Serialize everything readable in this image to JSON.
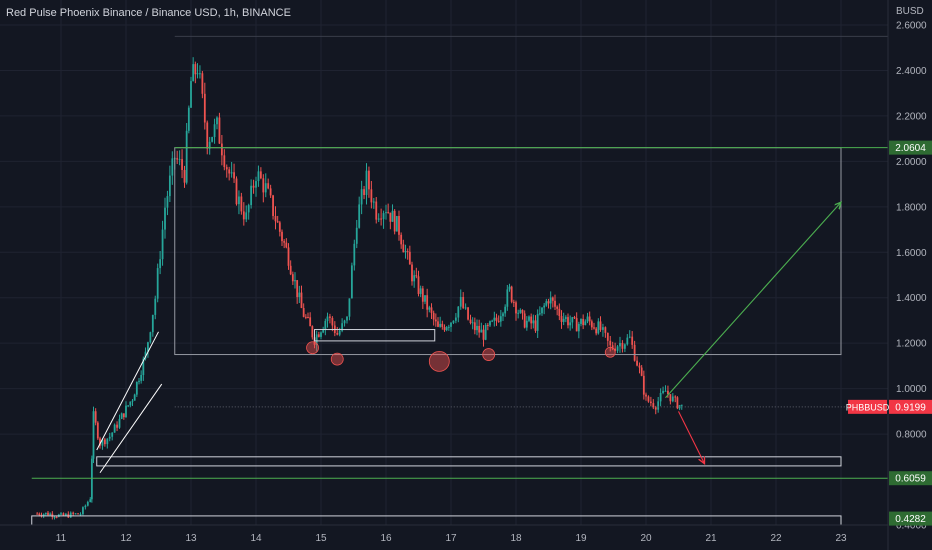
{
  "header": {
    "title": "Red Pulse Phoenix Binance / Binance USD, 1h, BINANCE"
  },
  "chart_data": {
    "type": "candlestick",
    "title": "Red Pulse Phoenix Binance / Binance USD, 1h, BINANCE",
    "ylabel": "BUSD",
    "ylim": [
      0.38,
      2.62
    ],
    "xlim": [
      10.55,
      23.8
    ],
    "y_ticks": [
      "2.6000",
      "2.4000",
      "2.2000",
      "2.0000",
      "1.8000",
      "1.6000",
      "1.4000",
      "1.2000",
      "1.0000",
      "0.8000",
      "0.4000"
    ],
    "x_ticks": [
      "11",
      "12",
      "13",
      "14",
      "15",
      "16",
      "17",
      "18",
      "19",
      "20",
      "21",
      "22",
      "23"
    ],
    "grid": true,
    "series": [
      {
        "name": "PHBBUSD",
        "path_close": [
          [
            10.6,
            0.45
          ],
          [
            10.8,
            0.45
          ],
          [
            11.0,
            0.44
          ],
          [
            11.3,
            0.45
          ],
          [
            11.45,
            0.52
          ],
          [
            11.5,
            0.88
          ],
          [
            11.6,
            0.76
          ],
          [
            11.75,
            0.79
          ],
          [
            11.9,
            0.86
          ],
          [
            12.1,
            0.96
          ],
          [
            12.3,
            1.15
          ],
          [
            12.45,
            1.4
          ],
          [
            12.6,
            1.8
          ],
          [
            12.75,
            2.02
          ],
          [
            12.9,
            1.95
          ],
          [
            13.0,
            2.35
          ],
          [
            13.1,
            2.42
          ],
          [
            13.25,
            2.1
          ],
          [
            13.4,
            2.15
          ],
          [
            13.55,
            1.98
          ],
          [
            13.7,
            1.85
          ],
          [
            13.85,
            1.75
          ],
          [
            14.0,
            1.95
          ],
          [
            14.15,
            1.88
          ],
          [
            14.3,
            1.75
          ],
          [
            14.5,
            1.58
          ],
          [
            14.7,
            1.35
          ],
          [
            14.9,
            1.22
          ],
          [
            15.1,
            1.32
          ],
          [
            15.25,
            1.24
          ],
          [
            15.4,
            1.3
          ],
          [
            15.55,
            1.75
          ],
          [
            15.7,
            1.92
          ],
          [
            15.85,
            1.78
          ],
          [
            16.0,
            1.8
          ],
          [
            16.2,
            1.7
          ],
          [
            16.4,
            1.5
          ],
          [
            16.6,
            1.38
          ],
          [
            16.8,
            1.26
          ],
          [
            17.0,
            1.3
          ],
          [
            17.15,
            1.38
          ],
          [
            17.3,
            1.28
          ],
          [
            17.5,
            1.24
          ],
          [
            17.7,
            1.3
          ],
          [
            17.9,
            1.43
          ],
          [
            18.1,
            1.3
          ],
          [
            18.3,
            1.28
          ],
          [
            18.5,
            1.4
          ],
          [
            18.7,
            1.32
          ],
          [
            18.9,
            1.28
          ],
          [
            19.1,
            1.3
          ],
          [
            19.3,
            1.26
          ],
          [
            19.45,
            1.18
          ],
          [
            19.6,
            1.2
          ],
          [
            19.75,
            1.22
          ],
          [
            19.9,
            1.08
          ],
          [
            20.0,
            0.95
          ],
          [
            20.15,
            0.93
          ],
          [
            20.3,
            0.99
          ],
          [
            20.45,
            0.94
          ],
          [
            20.55,
            0.92
          ]
        ]
      }
    ],
    "annotations": [
      {
        "name": "range-box",
        "type": "rect",
        "x": [
          12.75,
          23.0
        ],
        "y": [
          1.15,
          2.06
        ]
      },
      {
        "name": "support-box-1",
        "type": "rect",
        "x": [
          14.9,
          16.75
        ],
        "y": [
          1.21,
          1.26
        ]
      },
      {
        "name": "support-box-2",
        "type": "rect",
        "x": [
          11.55,
          23.0
        ],
        "y": [
          0.66,
          0.7
        ]
      },
      {
        "name": "support-box-3",
        "type": "rect",
        "x": [
          10.55,
          23.0
        ],
        "y": [
          0.4,
          0.44
        ]
      },
      {
        "name": "resistance-line",
        "type": "hline",
        "y": 2.0604
      },
      {
        "name": "support-line",
        "type": "hline",
        "y": 0.6059
      },
      {
        "name": "top-line",
        "type": "hline",
        "y": 2.55
      },
      {
        "name": "current-price-line",
        "type": "hline",
        "y": 0.9199
      },
      {
        "name": "up-arrow",
        "type": "arrow",
        "from": [
          20.3,
          0.96
        ],
        "to": [
          23.0,
          1.82
        ]
      },
      {
        "name": "down-arrow",
        "type": "arrow",
        "from": [
          20.5,
          0.9
        ],
        "to": [
          20.9,
          0.67
        ]
      }
    ],
    "price_labels": [
      {
        "name": "resistance-price-label",
        "text": "2.0604",
        "y": 2.0604,
        "color": "#2e6b32"
      },
      {
        "name": "current-price-label",
        "text": "0.9199",
        "y": 0.9199,
        "color": "#f23645"
      },
      {
        "name": "support-price-label",
        "text": "0.6059",
        "y": 0.6059,
        "color": "#2e6b32"
      },
      {
        "name": "low-price-label",
        "text": "0.4282",
        "y": 0.4282,
        "color": "#2e6b32"
      }
    ],
    "symbol_label": "PHBBUSD",
    "colors": {
      "background": "#131722",
      "up": "#26a69a",
      "down": "#ef5350",
      "box": "#9598a1",
      "support": "#4caf50",
      "arrow_up": "#4caf50",
      "arrow_down": "#f23645"
    }
  }
}
